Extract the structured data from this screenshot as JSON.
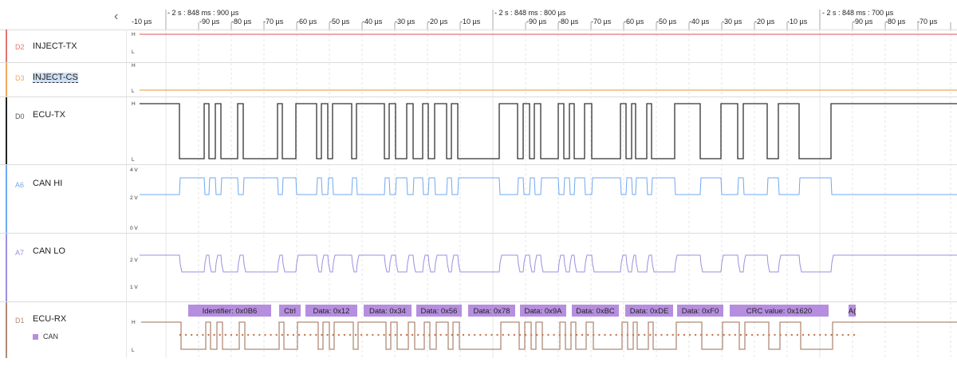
{
  "ruler": {
    "collapse_icon": "chevron-left-icon",
    "time_labels": [
      "- 2 s : 848 ms : 900 µs",
      "- 2 s : 848 ms : 800 µs",
      "- 2 s : 848 ms : 700 µs"
    ],
    "tick_labels": [
      "-10 µs",
      "-90 µs",
      "-80 µs",
      "-70 µs",
      "-60 µs",
      "-50 µs",
      "-40 µs",
      "-30 µs",
      "-20 µs",
      "-10 µs",
      "-90 µs",
      "-80 µs",
      "-70 µs",
      "-60 µs",
      "-50 µs",
      "-40 µs",
      "-30 µs",
      "-20 µs",
      "-10 µs",
      "-90 µs",
      "-80 µs",
      "-70 µs"
    ]
  },
  "channels": [
    {
      "id": "D2",
      "name": "INJECT-TX",
      "color": "#e57373",
      "levels": [
        "H",
        "L"
      ]
    },
    {
      "id": "D3",
      "name": "INJECT-CS",
      "color": "#f0a95a",
      "levels": [
        "H",
        "L"
      ]
    },
    {
      "id": "D0",
      "name": "ECU-TX",
      "color": "#222222",
      "levels": [
        "H",
        "L"
      ]
    },
    {
      "id": "A6",
      "name": "CAN HI",
      "color": "#6ea8f0",
      "levels": [
        "4 V",
        "2 V",
        "0 V"
      ]
    },
    {
      "id": "A7",
      "name": "CAN LO",
      "color": "#9c8fe0",
      "levels": [
        "2 V",
        "1 V"
      ]
    },
    {
      "id": "D1",
      "name": "ECU-RX",
      "color": "#b08a78",
      "levels": [
        "H",
        "L"
      ],
      "legend": "CAN"
    }
  ],
  "annotations": [
    "Identifier: 0x0B6",
    "Ctrl",
    "Data: 0x12",
    "Data: 0x34",
    "Data: 0x56",
    "Data: 0x78",
    "Data: 0x9A",
    "Data: 0xBC",
    "Data: 0xDE",
    "Data: 0xF0",
    "CRC value: 0x1620",
    "A("
  ],
  "colors": {
    "annotation": "#b68ee0",
    "grid": "#e4e4e4",
    "dots": "#c8784e"
  }
}
